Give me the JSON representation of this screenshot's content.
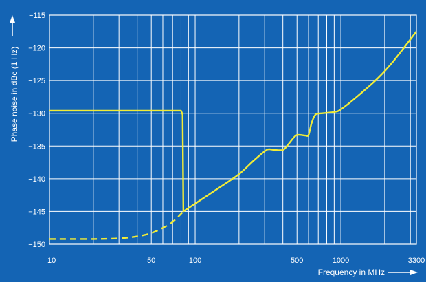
{
  "chart_data": {
    "type": "line",
    "title": "",
    "xlabel": "Frequency in MHz",
    "ylabel": "Phase noise in dBc (1 Hz)",
    "x_scale": "log",
    "xlim": [
      10,
      3300
    ],
    "ylim": [
      -150,
      -115
    ],
    "x_ticks": [
      10,
      50,
      100,
      500,
      1000,
      3300
    ],
    "x_tick_labels": [
      "10",
      "50",
      "100",
      "500",
      "1000",
      "3300"
    ],
    "y_ticks": [
      -115,
      -120,
      -125,
      -130,
      -135,
      -140,
      -145,
      -150
    ],
    "y_tick_labels": [
      "−115",
      "−120",
      "−125",
      "−130",
      "−135",
      "−140",
      "−145",
      "−150"
    ],
    "grid": true,
    "series": [
      {
        "style": "solid",
        "color": "#f2ec37",
        "points": [
          [
            10,
            -129.6
          ],
          [
            80,
            -129.6
          ],
          [
            82,
            -130.2
          ],
          [
            83,
            -145
          ]
        ]
      },
      {
        "style": "solid",
        "color": "#f2ec37",
        "points": [
          [
            83,
            -145
          ],
          [
            100,
            -143.8
          ],
          [
            150,
            -141.2
          ],
          [
            200,
            -139.3
          ],
          [
            250,
            -137.3
          ],
          [
            300,
            -135.8
          ],
          [
            320,
            -135.5
          ],
          [
            350,
            -135.6
          ],
          [
            400,
            -135.6
          ],
          [
            430,
            -134.9
          ],
          [
            480,
            -133.6
          ],
          [
            510,
            -133.3
          ],
          [
            570,
            -133.4
          ],
          [
            600,
            -133.3
          ],
          [
            630,
            -131.5
          ],
          [
            670,
            -130.2
          ],
          [
            750,
            -130.0
          ],
          [
            900,
            -129.8
          ],
          [
            1000,
            -129.4
          ],
          [
            1300,
            -127.4
          ],
          [
            1800,
            -124.6
          ],
          [
            2300,
            -122.0
          ],
          [
            3300,
            -117.5
          ]
        ]
      },
      {
        "style": "dashed",
        "color": "#f2ec37",
        "points": [
          [
            10,
            -149.2
          ],
          [
            20,
            -149.2
          ],
          [
            30,
            -149.1
          ],
          [
            40,
            -148.8
          ],
          [
            50,
            -148.3
          ],
          [
            60,
            -147.5
          ],
          [
            70,
            -146.6
          ],
          [
            83,
            -145
          ]
        ]
      }
    ],
    "colors": {
      "background": "#1464b4",
      "grid": "#ffffff",
      "text": "#ffffff",
      "curve": "#f2ec37"
    }
  }
}
